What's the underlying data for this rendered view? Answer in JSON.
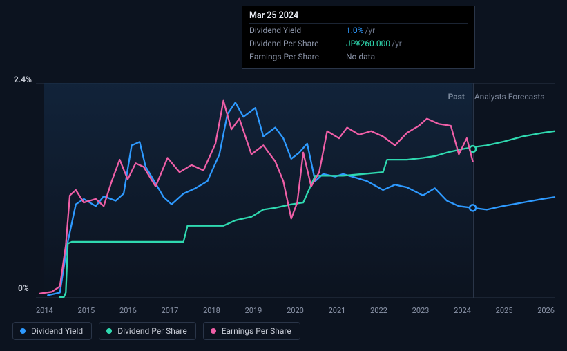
{
  "chart": {
    "type": "line",
    "background_color": "#0c131f",
    "grid_color": "#1b2433",
    "divider_color": "#2a3548",
    "y_axis": {
      "min_pct": 0,
      "max_pct": 2.4,
      "top_label": "2.4%",
      "bottom_label": "0%",
      "label_color": "#c8ccd6",
      "label_fontsize": 12
    },
    "x_axis": {
      "years": [
        "2014",
        "2015",
        "2016",
        "2017",
        "2018",
        "2019",
        "2020",
        "2021",
        "2022",
        "2023",
        "2024",
        "2025",
        "2026"
      ],
      "label_color": "#8b94a8",
      "label_fontsize": 11,
      "past_forecast_split_year": 2024.25
    },
    "section_labels": {
      "past": "Past",
      "forecast": "Analysts Forecasts",
      "past_color": "#e8ebf2",
      "forecast_color": "#7e889c"
    },
    "line_width": 2.3,
    "series": [
      {
        "id": "dividend_yield",
        "label": "Dividend Yield",
        "color": "#2e9aff",
        "marker_at_split": true,
        "points": [
          [
            2013.6,
            0.02
          ],
          [
            2013.9,
            0.05
          ],
          [
            2014.1,
            0.62
          ],
          [
            2014.3,
            1.04
          ],
          [
            2014.5,
            1.1
          ],
          [
            2014.8,
            1.02
          ],
          [
            2015.0,
            1.13
          ],
          [
            2015.3,
            1.08
          ],
          [
            2015.5,
            1.16
          ],
          [
            2015.7,
            1.7
          ],
          [
            2015.9,
            1.74
          ],
          [
            2016.05,
            1.46
          ],
          [
            2016.2,
            1.35
          ],
          [
            2016.5,
            1.12
          ],
          [
            2016.7,
            1.04
          ],
          [
            2017.0,
            1.16
          ],
          [
            2017.3,
            1.22
          ],
          [
            2017.6,
            1.3
          ],
          [
            2017.9,
            1.6
          ],
          [
            2018.1,
            2.05
          ],
          [
            2018.3,
            2.18
          ],
          [
            2018.5,
            2.02
          ],
          [
            2018.8,
            2.12
          ],
          [
            2019.0,
            1.8
          ],
          [
            2019.3,
            1.9
          ],
          [
            2019.5,
            1.78
          ],
          [
            2019.7,
            1.55
          ],
          [
            2019.9,
            1.62
          ],
          [
            2020.1,
            1.72
          ],
          [
            2020.3,
            1.3
          ],
          [
            2020.5,
            1.38
          ],
          [
            2020.8,
            1.35
          ],
          [
            2021.0,
            1.38
          ],
          [
            2021.3,
            1.34
          ],
          [
            2021.6,
            1.3
          ],
          [
            2022.0,
            1.2
          ],
          [
            2022.3,
            1.26
          ],
          [
            2022.6,
            1.23
          ],
          [
            2023.0,
            1.14
          ],
          [
            2023.3,
            1.22
          ],
          [
            2023.6,
            1.08
          ],
          [
            2023.9,
            1.02
          ],
          [
            2024.25,
            1.0
          ],
          [
            2024.6,
            0.98
          ],
          [
            2025.0,
            1.02
          ],
          [
            2025.5,
            1.06
          ],
          [
            2026.0,
            1.1
          ],
          [
            2026.3,
            1.12
          ]
        ]
      },
      {
        "id": "dividend_per_share",
        "label": "Dividend Per Share",
        "color": "#2fd9b0",
        "marker_at_split": true,
        "points": [
          [
            2013.9,
            0.0
          ],
          [
            2014.0,
            0.0
          ],
          [
            2014.05,
            0.05
          ],
          [
            2014.1,
            0.6
          ],
          [
            2014.2,
            0.62
          ],
          [
            2015.0,
            0.62
          ],
          [
            2016.0,
            0.62
          ],
          [
            2017.0,
            0.62
          ],
          [
            2017.1,
            0.8
          ],
          [
            2017.5,
            0.8
          ],
          [
            2018.0,
            0.8
          ],
          [
            2018.3,
            0.86
          ],
          [
            2018.7,
            0.9
          ],
          [
            2019.0,
            0.98
          ],
          [
            2019.3,
            1.0
          ],
          [
            2019.7,
            1.04
          ],
          [
            2020.0,
            1.06
          ],
          [
            2020.3,
            1.36
          ],
          [
            2021.0,
            1.36
          ],
          [
            2021.5,
            1.38
          ],
          [
            2022.0,
            1.4
          ],
          [
            2022.1,
            1.54
          ],
          [
            2022.6,
            1.54
          ],
          [
            2023.0,
            1.56
          ],
          [
            2023.3,
            1.58
          ],
          [
            2023.6,
            1.62
          ],
          [
            2024.0,
            1.66
          ],
          [
            2024.25,
            1.68
          ],
          [
            2024.6,
            1.7
          ],
          [
            2025.0,
            1.74
          ],
          [
            2025.5,
            1.8
          ],
          [
            2026.0,
            1.84
          ],
          [
            2026.3,
            1.86
          ]
        ]
      },
      {
        "id": "earnings_per_share",
        "label": "Earnings Per Share",
        "color": "#ef5fa7",
        "marker_at_split": false,
        "points": [
          [
            2013.4,
            0.04
          ],
          [
            2013.7,
            0.06
          ],
          [
            2013.9,
            0.12
          ],
          [
            2014.05,
            0.58
          ],
          [
            2014.15,
            1.14
          ],
          [
            2014.3,
            1.2
          ],
          [
            2014.5,
            1.06
          ],
          [
            2014.8,
            1.1
          ],
          [
            2015.0,
            1.02
          ],
          [
            2015.2,
            1.3
          ],
          [
            2015.4,
            1.54
          ],
          [
            2015.6,
            1.32
          ],
          [
            2015.8,
            1.5
          ],
          [
            2016.0,
            1.46
          ],
          [
            2016.3,
            1.24
          ],
          [
            2016.6,
            1.56
          ],
          [
            2016.9,
            1.4
          ],
          [
            2017.2,
            1.48
          ],
          [
            2017.5,
            1.42
          ],
          [
            2017.8,
            1.72
          ],
          [
            2018.0,
            2.2
          ],
          [
            2018.2,
            1.88
          ],
          [
            2018.4,
            2.0
          ],
          [
            2018.7,
            1.6
          ],
          [
            2019.0,
            1.7
          ],
          [
            2019.3,
            1.52
          ],
          [
            2019.5,
            1.3
          ],
          [
            2019.7,
            0.88
          ],
          [
            2019.85,
            1.06
          ],
          [
            2020.0,
            1.62
          ],
          [
            2020.2,
            1.24
          ],
          [
            2020.4,
            1.4
          ],
          [
            2020.6,
            1.86
          ],
          [
            2020.9,
            1.78
          ],
          [
            2021.1,
            1.9
          ],
          [
            2021.4,
            1.82
          ],
          [
            2021.7,
            1.86
          ],
          [
            2022.0,
            1.8
          ],
          [
            2022.3,
            1.7
          ],
          [
            2022.6,
            1.84
          ],
          [
            2022.9,
            1.92
          ],
          [
            2023.1,
            2.0
          ],
          [
            2023.4,
            1.94
          ],
          [
            2023.7,
            1.92
          ],
          [
            2023.9,
            1.6
          ],
          [
            2024.1,
            1.78
          ],
          [
            2024.25,
            1.52
          ]
        ]
      }
    ]
  },
  "tooltip": {
    "date": "Mar 25 2024",
    "rows": [
      {
        "key": "Dividend Yield",
        "value": "1.0%",
        "unit": "/yr",
        "value_class": "v-blue"
      },
      {
        "key": "Dividend Per Share",
        "value": "JP¥260.000",
        "unit": "/yr",
        "value_class": "v-teal"
      },
      {
        "key": "Earnings Per Share",
        "value": "No data",
        "unit": "",
        "value_class": ""
      }
    ]
  },
  "legend": {
    "items": [
      {
        "label": "Dividend Yield",
        "color": "#2e9aff"
      },
      {
        "label": "Dividend Per Share",
        "color": "#2fd9b0"
      },
      {
        "label": "Earnings Per Share",
        "color": "#ef5fa7"
      }
    ]
  }
}
